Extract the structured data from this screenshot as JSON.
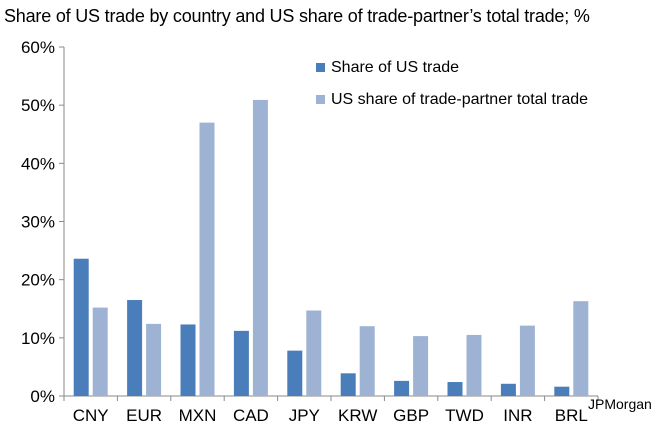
{
  "title": "Share of US trade by country and US share of trade-partner’s total trade; %",
  "source": "JPMorgan",
  "colors": {
    "series1": "#4a7ebb",
    "series2": "#9eb3d3",
    "axis": "#8a8a8a"
  },
  "chart_data": {
    "type": "bar",
    "title": "Share of US trade by country and US share of trade-partner’s total trade; %",
    "xlabel": "",
    "ylabel": "",
    "categories": [
      "CNY",
      "EUR",
      "MXN",
      "CAD",
      "JPY",
      "KRW",
      "GBP",
      "TWD",
      "INR",
      "BRL"
    ],
    "series": [
      {
        "name": "Share of US trade",
        "values": [
          23.6,
          16.5,
          12.3,
          11.2,
          7.8,
          3.9,
          2.6,
          2.4,
          2.1,
          1.6
        ]
      },
      {
        "name": "US share of trade-partner total trade",
        "values": [
          15.2,
          12.4,
          47.0,
          50.9,
          14.7,
          12.0,
          10.3,
          10.5,
          12.1,
          16.3
        ]
      }
    ],
    "ylim": [
      0,
      60
    ],
    "yticks": [
      0,
      10,
      20,
      30,
      40,
      50,
      60
    ],
    "ytick_labels": [
      "0%",
      "10%",
      "20%",
      "30%",
      "40%",
      "50%",
      "60%"
    ],
    "grid": false,
    "legend_position": "top-right"
  }
}
